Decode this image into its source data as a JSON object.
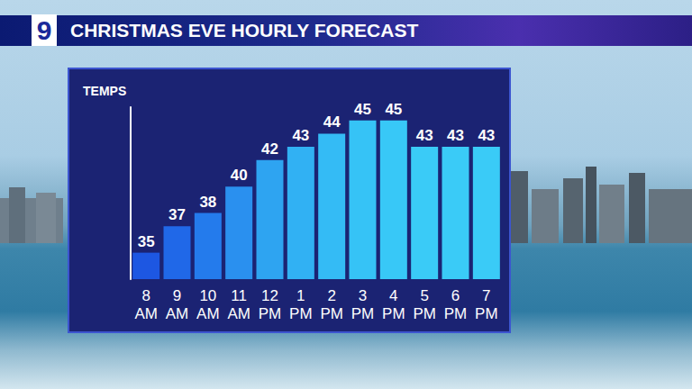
{
  "header": {
    "logo": "9",
    "title": "CHRISTMAS EVE HOURLY FORECAST"
  },
  "chart_data": {
    "type": "bar",
    "title": "TEMPS",
    "categories": [
      "8 AM",
      "9 AM",
      "10 AM",
      "11 AM",
      "12 PM",
      "1 PM",
      "2 PM",
      "3 PM",
      "4 PM",
      "5 PM",
      "6 PM",
      "7 PM"
    ],
    "values": [
      35,
      37,
      38,
      40,
      42,
      43,
      44,
      45,
      45,
      43,
      43,
      43
    ],
    "colors": [
      "#1d57e2",
      "#2068e8",
      "#247bec",
      "#2a90ef",
      "#2ea4f1",
      "#31b1f3",
      "#34bbf5",
      "#36c3f6",
      "#38c8f7",
      "#3acbf7",
      "#3acbf7",
      "#3acbf7"
    ],
    "ylim": [
      33,
      46
    ],
    "yticks": [],
    "grid": false,
    "data_labels": true,
    "tick_labels": "x"
  }
}
